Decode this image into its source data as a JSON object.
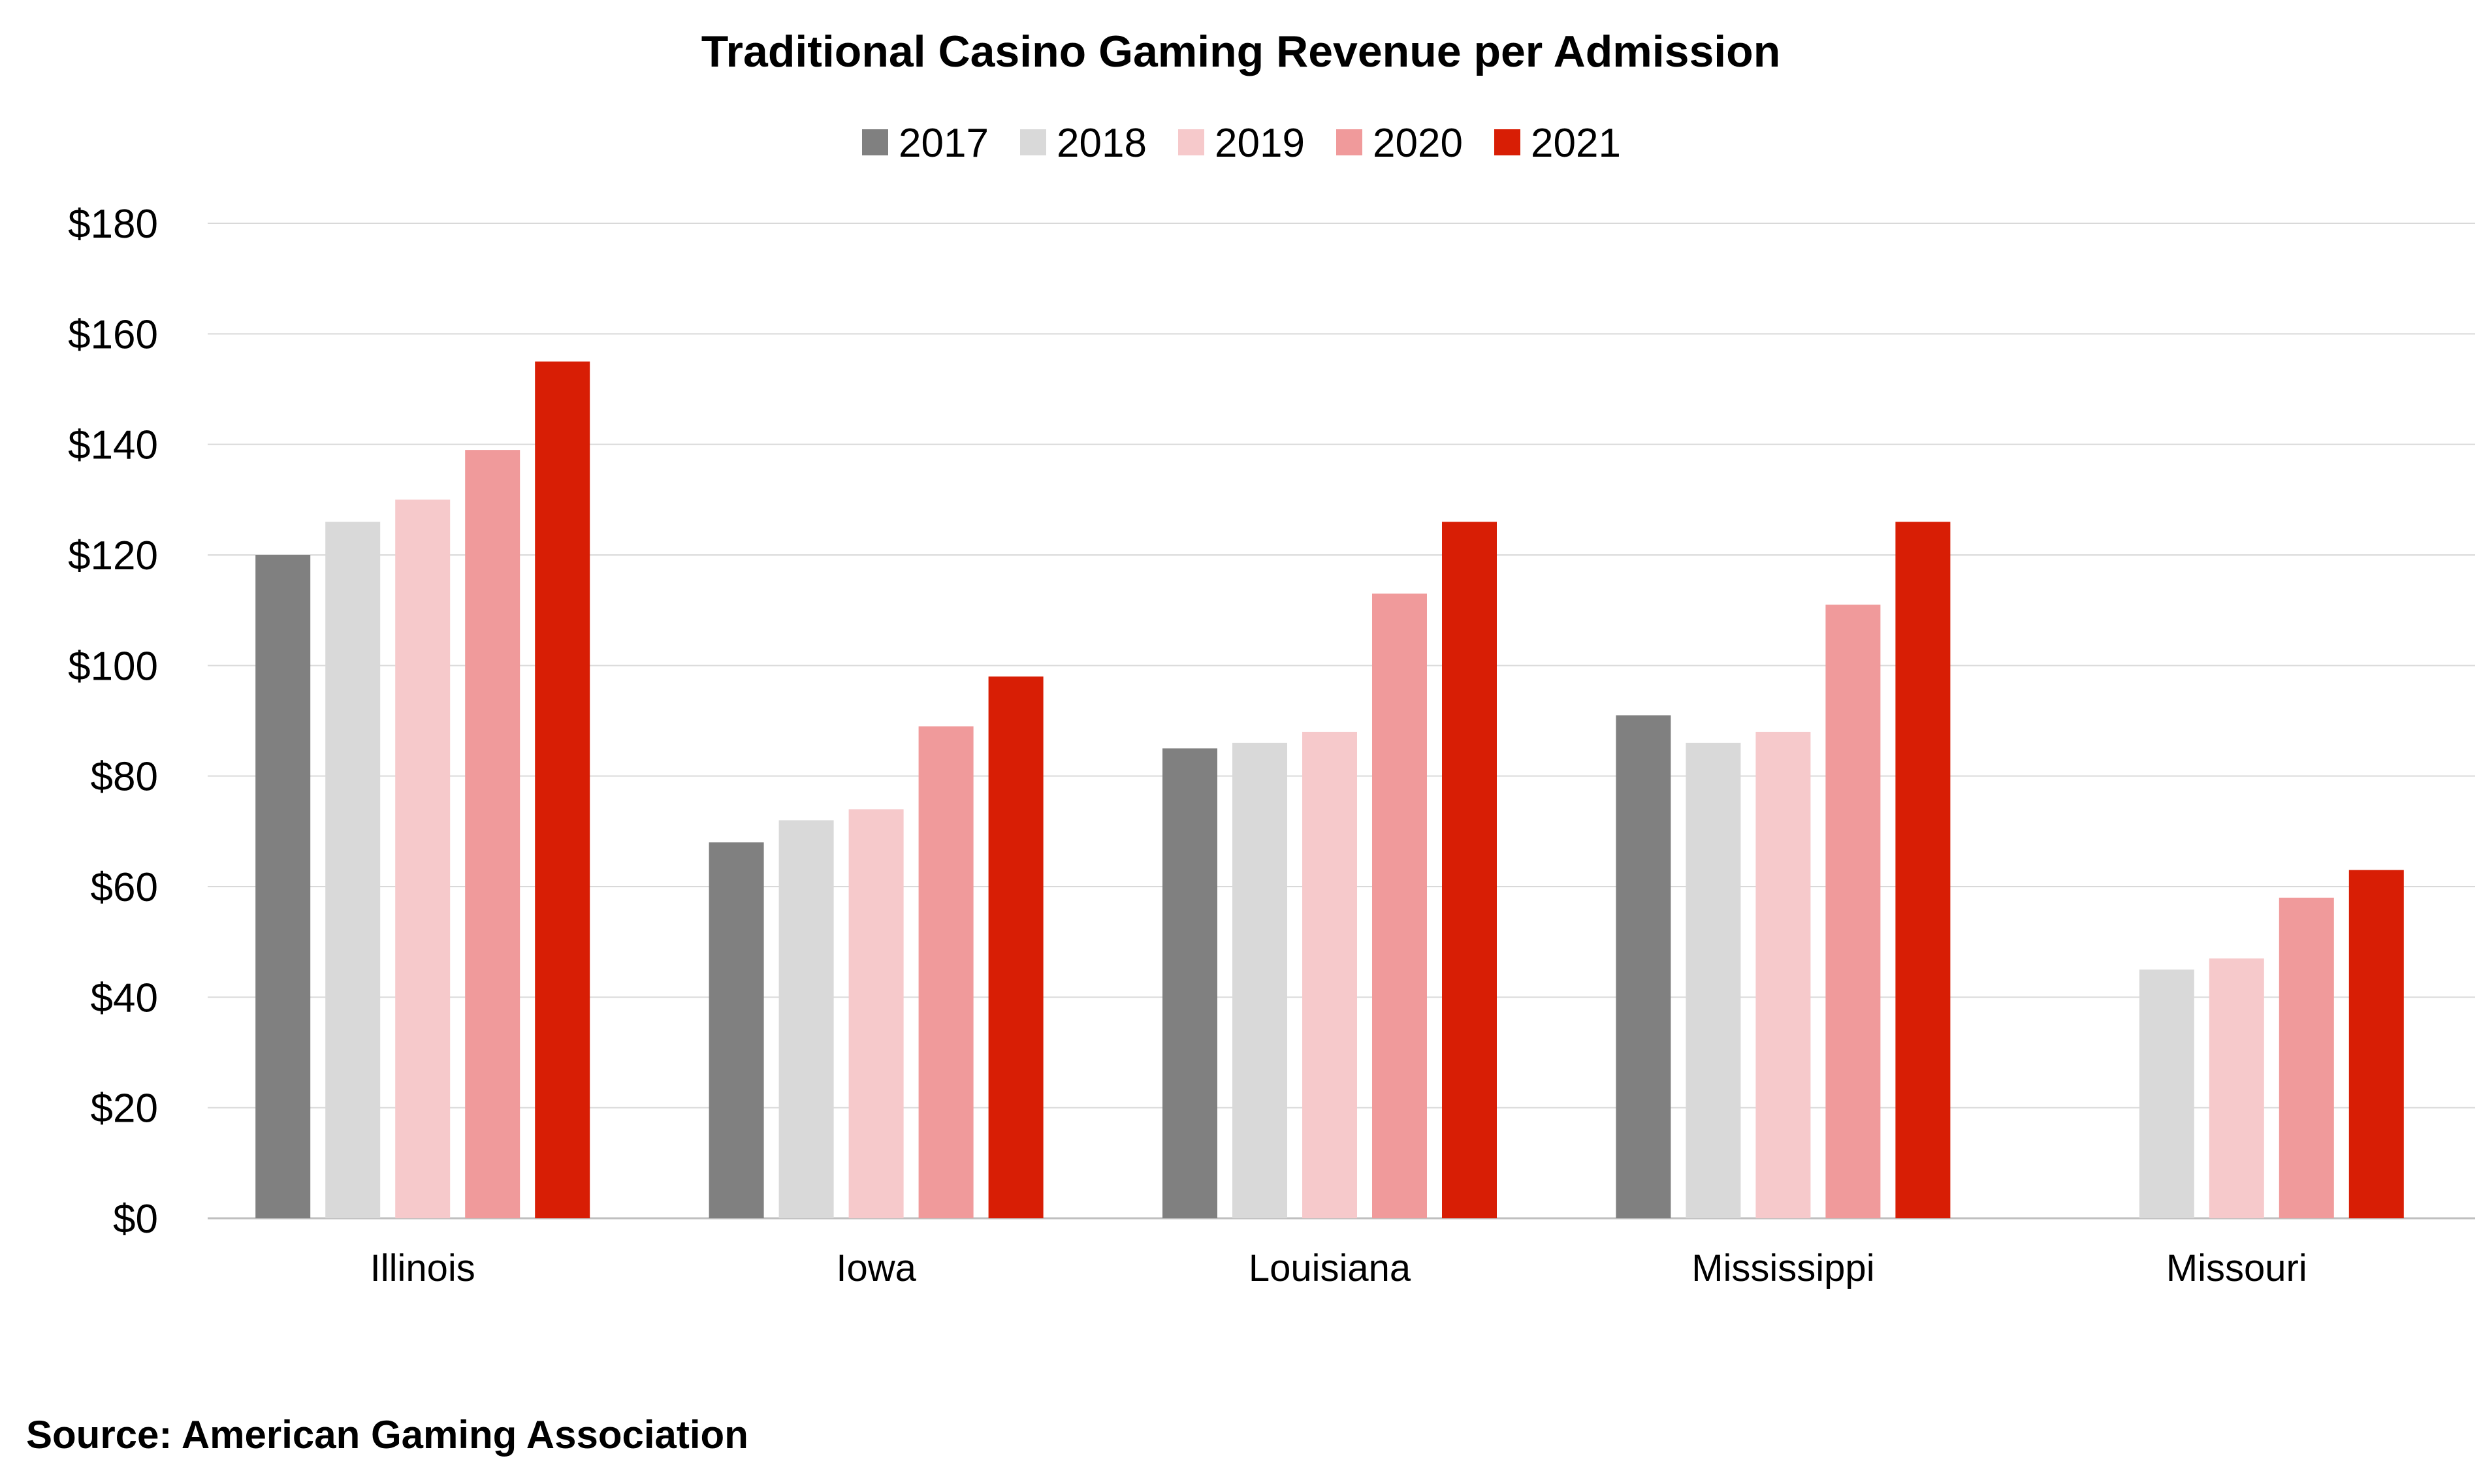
{
  "chart_data": {
    "type": "bar",
    "title": "Traditional Casino Gaming Revenue per Admission",
    "xlabel": "",
    "ylabel": "",
    "categories": [
      "Illinois",
      "Iowa",
      "Louisiana",
      "Mississippi",
      "Missouri"
    ],
    "series": [
      {
        "name": "2017",
        "color": "#808080",
        "values": [
          120,
          68,
          85,
          91,
          null
        ]
      },
      {
        "name": "2018",
        "color": "#d9d9d9",
        "values": [
          126,
          72,
          86,
          86,
          45
        ]
      },
      {
        "name": "2019",
        "color": "#f6c9cb",
        "values": [
          130,
          74,
          88,
          88,
          47
        ]
      },
      {
        "name": "2020",
        "color": "#f09a9b",
        "values": [
          139,
          89,
          113,
          111,
          58
        ]
      },
      {
        "name": "2021",
        "color": "#d81e05",
        "values": [
          155,
          98,
          126,
          126,
          63
        ]
      }
    ],
    "ylim": [
      0,
      180
    ],
    "yticks": [
      0,
      20,
      40,
      60,
      80,
      100,
      120,
      140,
      160,
      180
    ],
    "ytick_labels": [
      "$0",
      "$20",
      "$40",
      "$60",
      "$80",
      "$100",
      "$120",
      "$140",
      "$160",
      "$180"
    ],
    "grid": true,
    "legend_position": "top-center"
  },
  "source_note": "Source: American Gaming Association"
}
